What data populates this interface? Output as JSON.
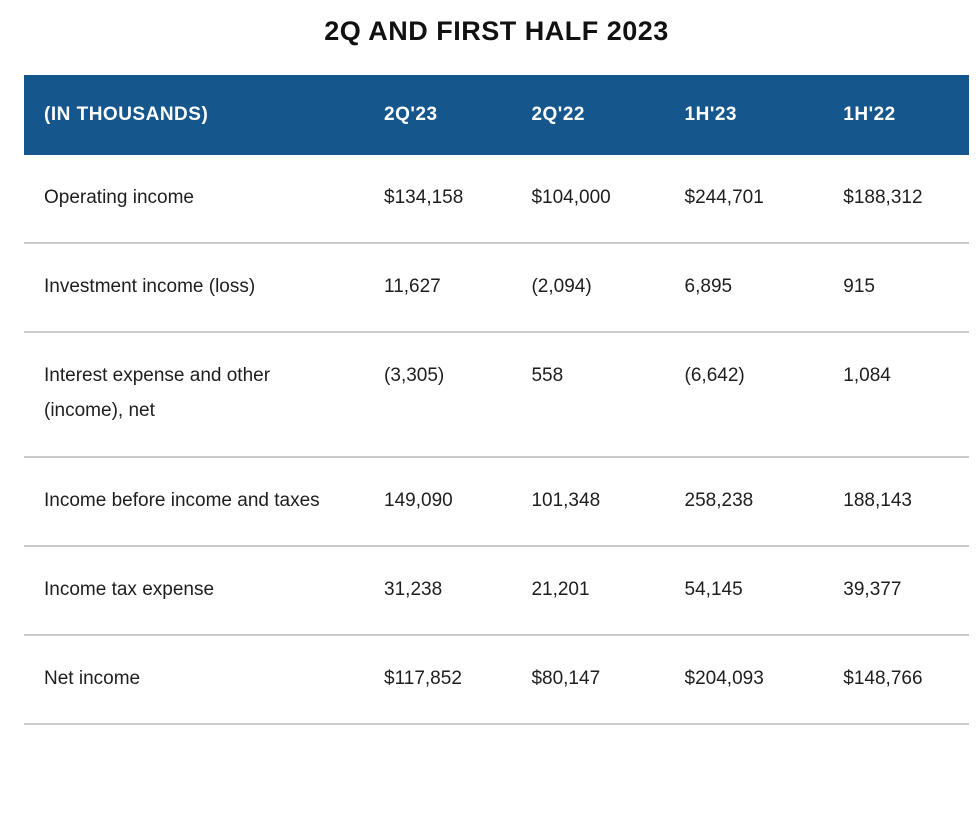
{
  "page": {
    "title": "2Q AND FIRST HALF 2023"
  },
  "table": {
    "columns": {
      "label": "(IN THOUSANDS)",
      "col1": "2Q'23",
      "col2": "2Q'22",
      "col3": "1H'23",
      "col4": "1H'22"
    },
    "rows": [
      {
        "label": "Operating income",
        "values": [
          "$134,158",
          "$104,000",
          "$244,701",
          "$188,312"
        ]
      },
      {
        "label": "Investment income (loss)",
        "values": [
          "11,627",
          "(2,094)",
          "6,895",
          "915"
        ]
      },
      {
        "label": "Interest expense and other (income), net",
        "values": [
          "(3,305)",
          "558",
          "(6,642)",
          "1,084"
        ]
      },
      {
        "label": "Income before income and taxes",
        "values": [
          "149,090",
          "101,348",
          "258,238",
          "188,143"
        ]
      },
      {
        "label": "Income tax expense",
        "values": [
          "31,238",
          "21,201",
          "54,145",
          "39,377"
        ]
      },
      {
        "label": "Net income",
        "values": [
          "$117,852",
          "$80,147",
          "$204,093",
          "$148,766"
        ]
      }
    ],
    "colors": {
      "header_bg": "#15578c",
      "header_text": "#ffffff",
      "body_text": "#1e1e1e",
      "divider": "#cbcbcb"
    }
  }
}
